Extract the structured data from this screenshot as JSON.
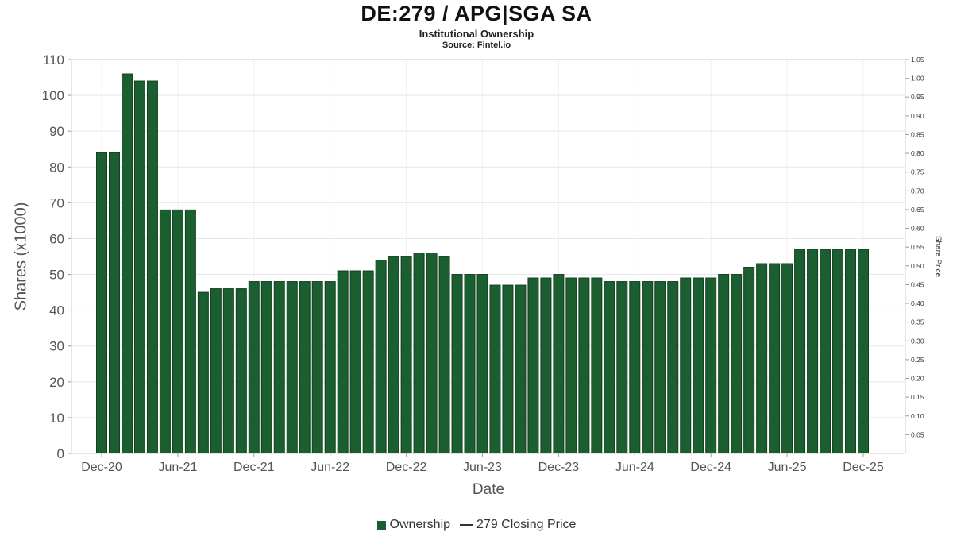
{
  "header": {
    "title": "DE:279 / APG|SGA SA",
    "subtitle": "Institutional Ownership",
    "source": "Source: Fintel.io"
  },
  "chart_data": {
    "type": "bar",
    "title": "DE:279 / APG|SGA SA",
    "subtitle": "Institutional Ownership",
    "source": "Source: Fintel.io",
    "xlabel": "Date",
    "ylabel_left": "Shares (x1000)",
    "ylabel_right": "Share Price",
    "ylim_left": [
      0,
      110
    ],
    "ylim_right": [
      0,
      1.05
    ],
    "grid": true,
    "legend_position": "bottom",
    "bar_color": "#1b5e2f",
    "bar_edge_color": "#123f20",
    "y_ticks_left": [
      0,
      10,
      20,
      30,
      40,
      50,
      60,
      70,
      80,
      90,
      100,
      110
    ],
    "y_ticks_right": [
      0.05,
      0.1,
      0.15,
      0.2,
      0.25,
      0.3,
      0.35,
      0.4,
      0.45,
      0.5,
      0.55,
      0.6,
      0.65,
      0.7,
      0.75,
      0.8,
      0.85,
      0.9,
      0.95,
      1.0,
      1.05
    ],
    "x_tick_labels": [
      "Dec-20",
      "Jun-21",
      "Dec-21",
      "Jun-22",
      "Dec-22",
      "Jun-23",
      "Dec-23",
      "Jun-24",
      "Dec-24",
      "Jun-25",
      "Dec-25"
    ],
    "categories": [
      "Dec-20",
      "Jan-21",
      "Feb-21",
      "Mar-21",
      "Apr-21",
      "May-21",
      "Jun-21",
      "Jul-21",
      "Aug-21",
      "Sep-21",
      "Oct-21",
      "Nov-21",
      "Dec-21",
      "Jan-22",
      "Feb-22",
      "Mar-22",
      "Apr-22",
      "May-22",
      "Jun-22",
      "Jul-22",
      "Aug-22",
      "Sep-22",
      "Oct-22",
      "Nov-22",
      "Dec-22",
      "Jan-23",
      "Feb-23",
      "Mar-23",
      "Apr-23",
      "May-23",
      "Jun-23",
      "Jul-23",
      "Aug-23",
      "Sep-23",
      "Oct-23",
      "Nov-23",
      "Dec-23",
      "Jan-24",
      "Feb-24",
      "Mar-24",
      "Apr-24",
      "May-24",
      "Jun-24",
      "Jul-24",
      "Aug-24",
      "Sep-24",
      "Oct-24",
      "Nov-24",
      "Dec-24",
      "Jan-25",
      "Feb-25",
      "Mar-25",
      "Apr-25",
      "May-25",
      "Jun-25",
      "Jul-25",
      "Aug-25",
      "Sep-25",
      "Oct-25",
      "Nov-25",
      "Dec-25"
    ],
    "values": [
      84,
      84,
      106,
      104,
      104,
      68,
      68,
      68,
      45,
      46,
      46,
      46,
      48,
      48,
      48,
      48,
      48,
      48,
      48,
      51,
      51,
      51,
      54,
      55,
      55,
      56,
      56,
      55,
      50,
      50,
      50,
      47,
      47,
      47,
      49,
      49,
      50,
      49,
      49,
      49,
      48,
      48,
      48,
      48,
      48,
      48,
      49,
      49,
      49,
      50,
      50,
      52,
      53,
      53,
      53,
      57,
      57,
      57,
      57,
      57,
      57
    ],
    "legend": [
      {
        "label": "Ownership",
        "type": "square",
        "color": "#1b5e2f"
      },
      {
        "label": "279 Closing Price",
        "type": "line",
        "color": "#333333"
      }
    ]
  }
}
